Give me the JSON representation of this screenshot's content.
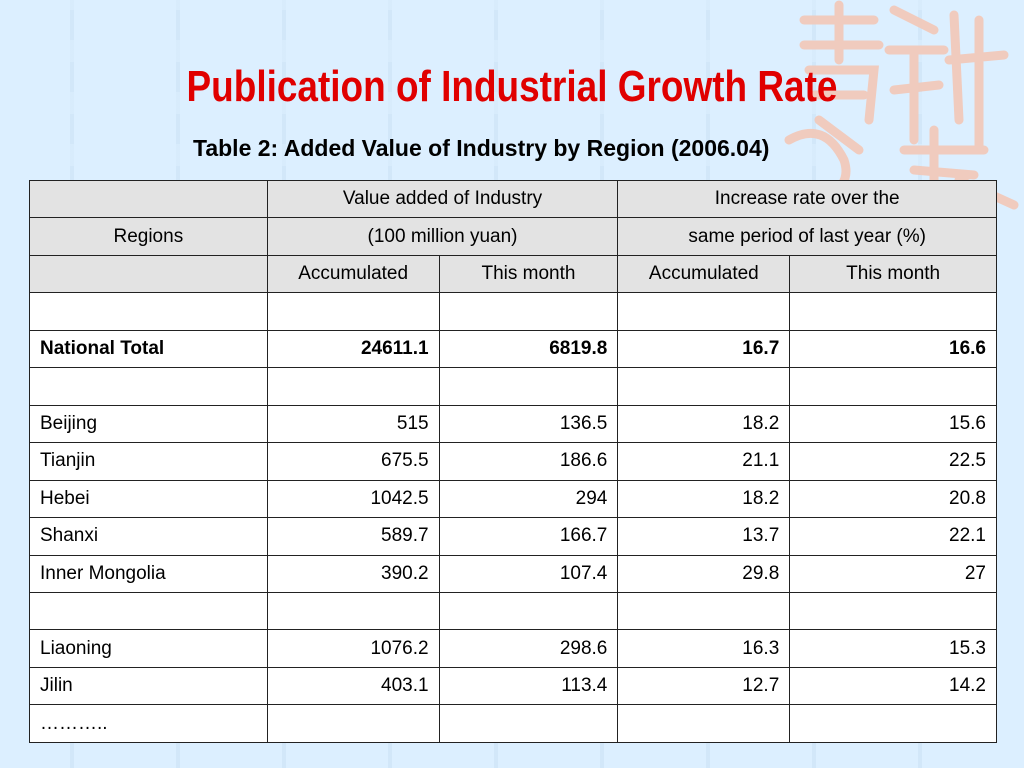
{
  "title": "Publication of Industrial Growth Rate",
  "subtitle": "Table 2: Added Value of Industry by Region (2006.04)",
  "header": {
    "regions_label": "Regions",
    "value_added_line1": "Value added of Industry",
    "value_added_line2": "(100 million yuan)",
    "increase_line1": "Increase rate over the",
    "increase_line2": "same period of last year (%)",
    "accumulated": "Accumulated",
    "this_month": "This month"
  },
  "national_total": {
    "name": "National Total",
    "va_accumulated": "24611.1",
    "va_this_month": "6819.8",
    "rate_accumulated": "16.7",
    "rate_this_month": "16.6"
  },
  "group1": [
    {
      "name": "Beijing",
      "va_accumulated": "515",
      "va_this_month": "136.5",
      "rate_accumulated": "18.2",
      "rate_this_month": "15.6"
    },
    {
      "name": "Tianjin",
      "va_accumulated": "675.5",
      "va_this_month": "186.6",
      "rate_accumulated": "21.1",
      "rate_this_month": "22.5"
    },
    {
      "name": "Hebei",
      "va_accumulated": "1042.5",
      "va_this_month": "294",
      "rate_accumulated": "18.2",
      "rate_this_month": "20.8"
    },
    {
      "name": "Shanxi",
      "va_accumulated": "589.7",
      "va_this_month": "166.7",
      "rate_accumulated": "13.7",
      "rate_this_month": "22.1"
    },
    {
      "name": "Inner Mongolia",
      "va_accumulated": "390.2",
      "va_this_month": "107.4",
      "rate_accumulated": "29.8",
      "rate_this_month": "27"
    }
  ],
  "group2": [
    {
      "name": "Liaoning",
      "va_accumulated": "1076.2",
      "va_this_month": "298.6",
      "rate_accumulated": "16.3",
      "rate_this_month": "15.3"
    },
    {
      "name": "Jilin",
      "va_accumulated": "403.1",
      "va_this_month": "113.4",
      "rate_accumulated": "12.7",
      "rate_this_month": "14.2"
    }
  ],
  "ellipsis": "………..",
  "colors": {
    "title": "#e00000",
    "background": "#dcefff",
    "header_cell": "#e3e3e3"
  }
}
